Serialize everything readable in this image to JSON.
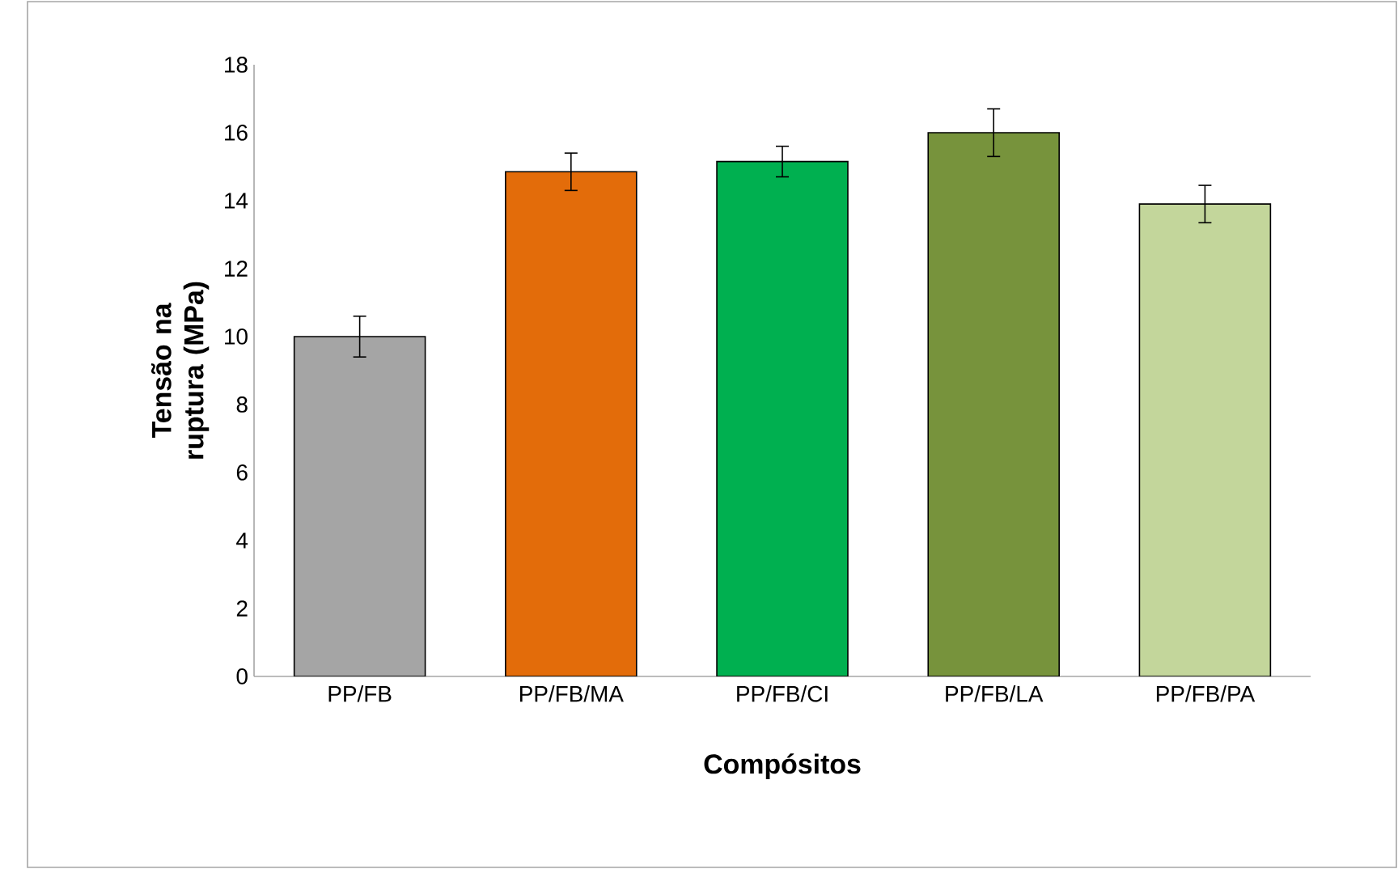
{
  "chart_data": {
    "type": "bar",
    "xlabel": "Compósitos",
    "ylabel": "Tensão na ruptura (MPa)",
    "categories": [
      "PP/FB",
      "PP/FB/MA",
      "PP/FB/CI",
      "PP/FB/LA",
      "PP/FB/PA"
    ],
    "values": [
      10.0,
      14.85,
      15.15,
      16.0,
      13.9
    ],
    "errors": [
      0.6,
      0.55,
      0.45,
      0.7,
      0.55
    ],
    "colors": [
      "#a5a5a5",
      "#e36c0a",
      "#00b050",
      "#77933c",
      "#c3d69b"
    ],
    "ylim": [
      0,
      18
    ],
    "yticks": [
      0,
      2,
      4,
      6,
      8,
      10,
      12,
      14,
      16,
      18
    ],
    "grid": false
  }
}
